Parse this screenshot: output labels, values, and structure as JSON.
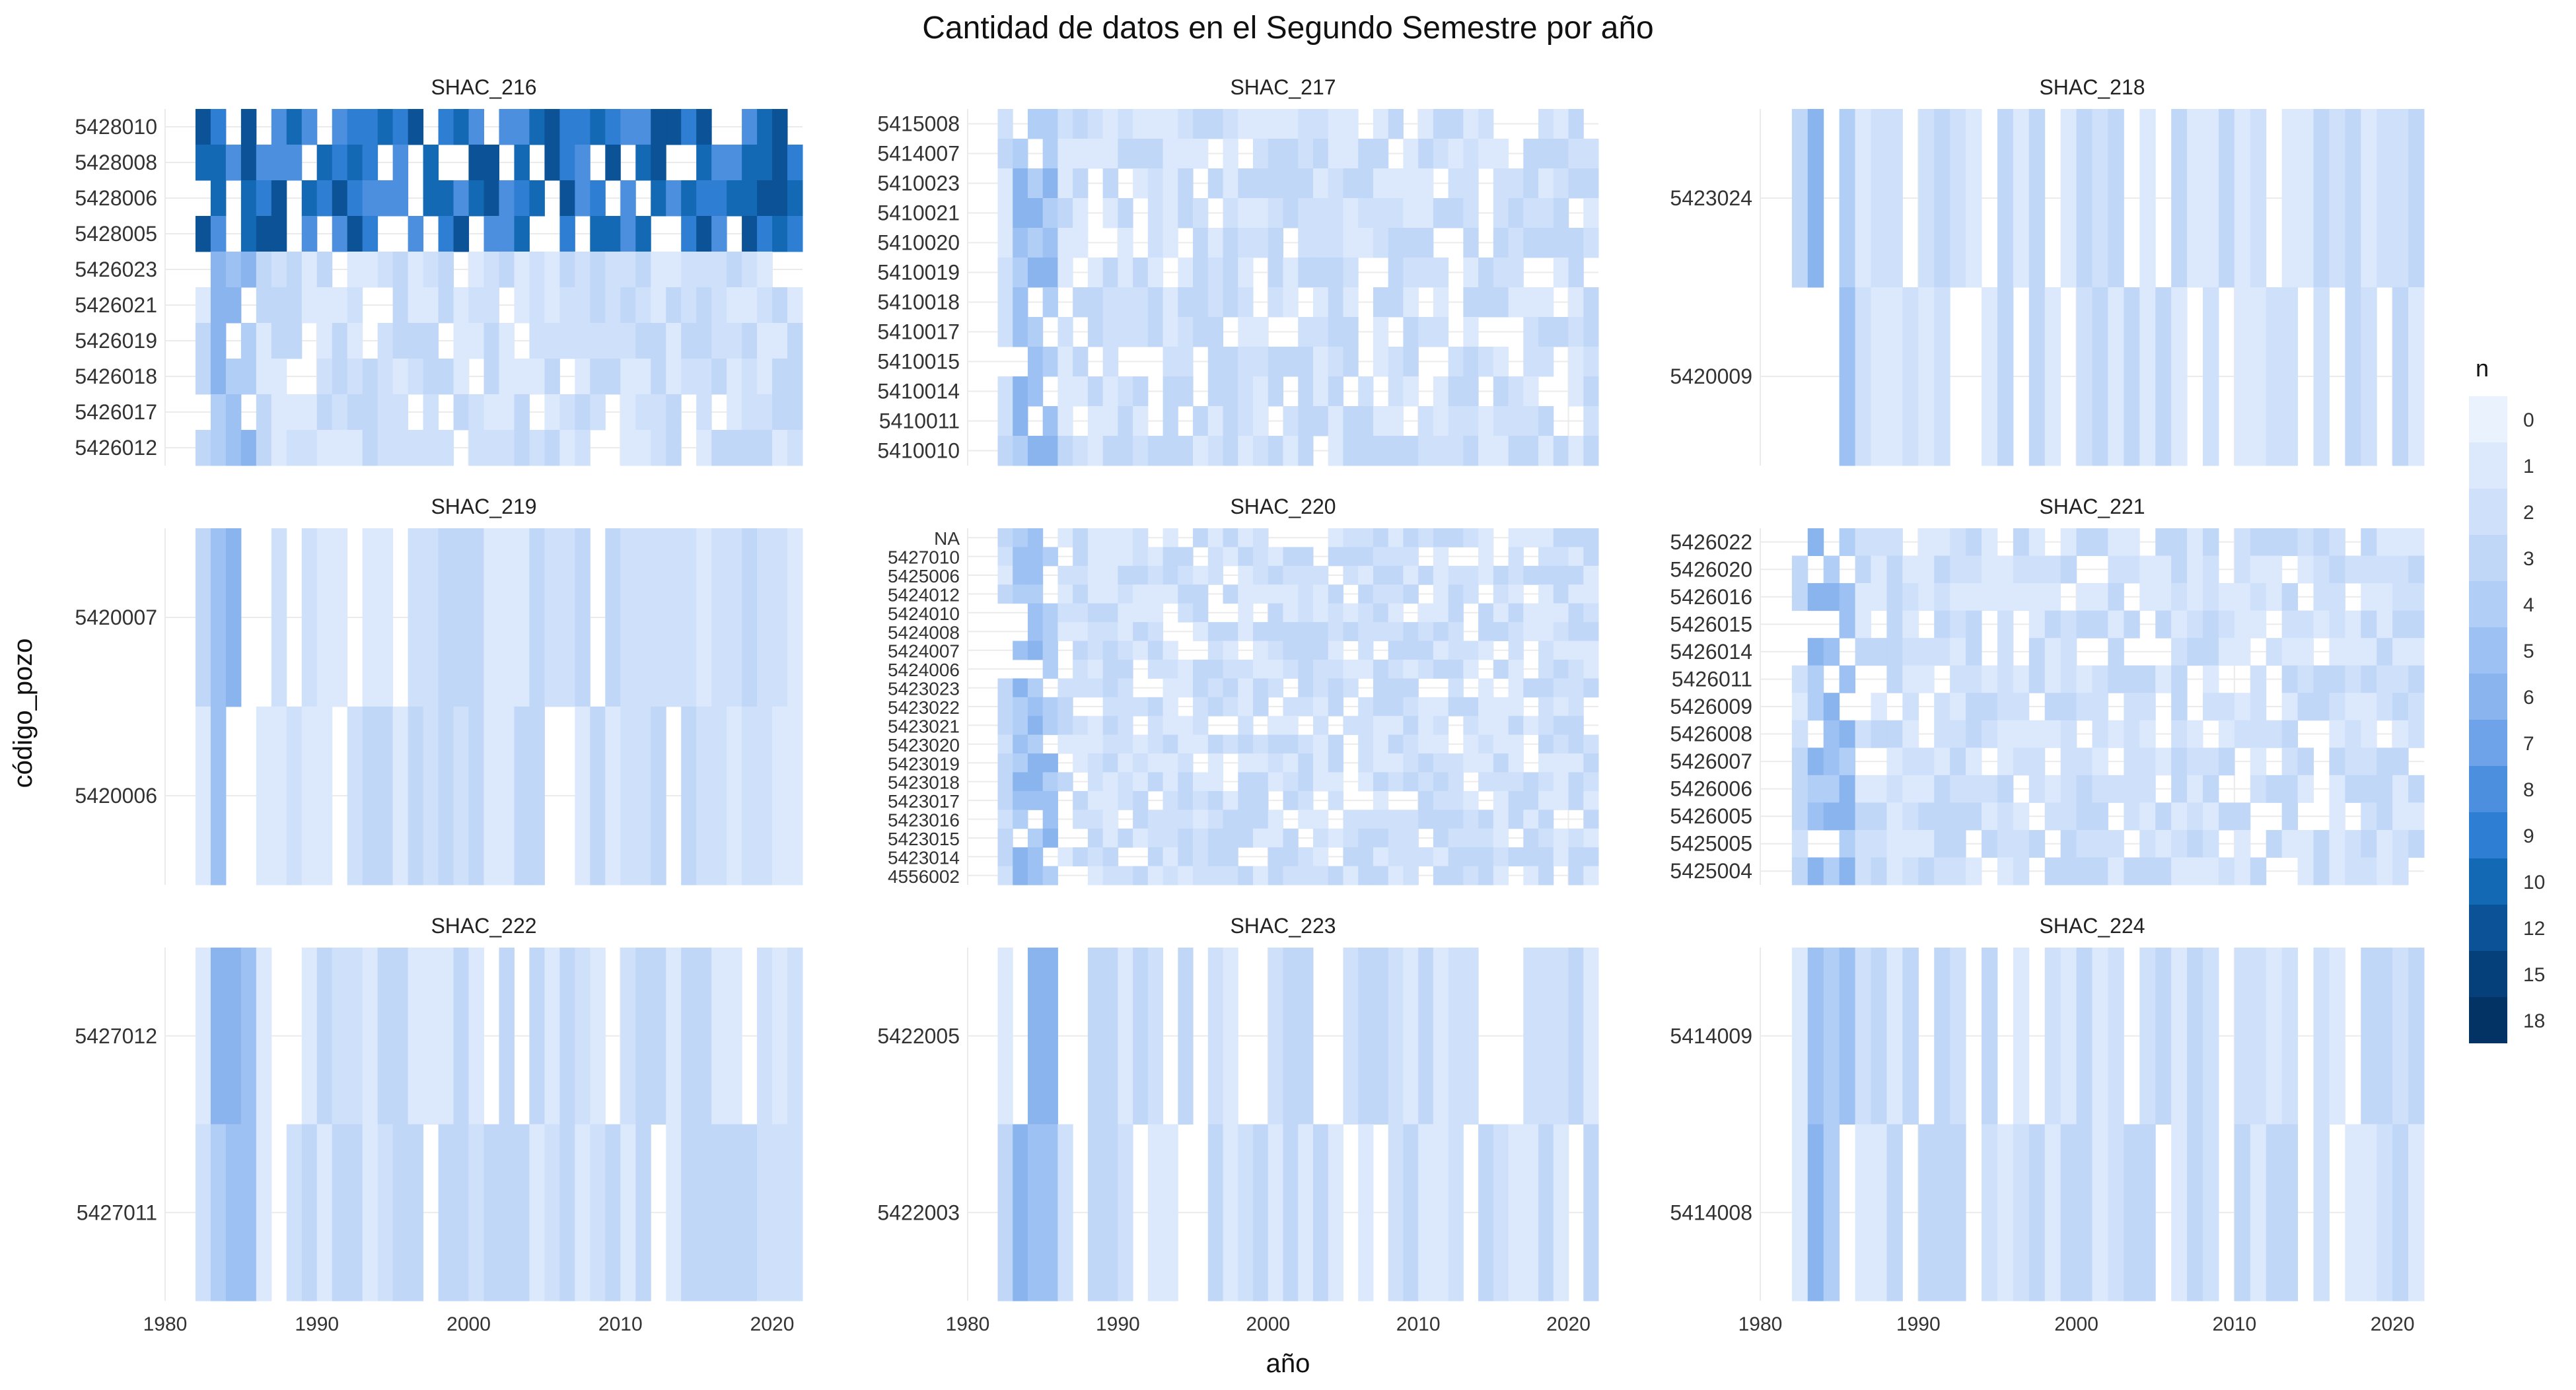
{
  "colors": {
    "scale": [
      "#EAF2FE",
      "#DCE9FC",
      "#CFE0FA",
      "#C0D7F8",
      "#B1CEF6",
      "#9DC1F3",
      "#8AB4EE",
      "#6FA3E9",
      "#4C8FDF",
      "#2E7FD4",
      "#1469B5",
      "#0B5297",
      "#06407A",
      "#033264"
    ]
  },
  "chart_data": {
    "type": "heatmap",
    "title": "Cantidad de datos en el Segundo Semestre por año",
    "xlabel": "año",
    "ylabel": "código_pozo",
    "x_ticks": [
      1980,
      1990,
      2000,
      2010,
      2020
    ],
    "xlim": [
      1980,
      2022
    ],
    "legend": {
      "title": "n",
      "position": "right",
      "labels": [
        "0",
        "1",
        "2",
        "3",
        "4",
        "5",
        "6",
        "7",
        "8",
        "9",
        "10",
        "12",
        "15",
        "18"
      ]
    },
    "panels": [
      {
        "name": "SHAC_216",
        "rows": [
          {
            "label": "5428010",
            "cells": "DDDJ00000000000000000000000000000000000000"
          },
          {
            "label": "5428008",
            "cells": "00000000000000000000000000000000000000000"
          },
          {
            "label": "5428006",
            "cells": "00000000000000000000000000000000000000000"
          },
          {
            "label": "5428005",
            "cells": "00000000000000000000000000000000000000000"
          },
          {
            "label": "5426023",
            "cells": "00000000000000000000000000000000000000000"
          },
          {
            "label": "5426021",
            "cells": "00000000000000000000000000000000000000000"
          },
          {
            "label": "5426019",
            "cells": "00000000000000000000000000000000000000000"
          },
          {
            "label": "5426018",
            "cells": "00000000000000000000000000000000000000000"
          },
          {
            "label": "5426017",
            "cells": "00000000000000000000000000000000000000000"
          },
          {
            "label": "5426012",
            "cells": "00000000000000000000000000000000000000000"
          }
        ]
      },
      {
        "name": "SHAC_217",
        "rows": [
          {
            "label": "5415008",
            "cells": "000000000000000000000000000000000000000000"
          },
          {
            "label": "5414007",
            "cells": "000000000000000000000000000000000000000000"
          },
          {
            "label": "5410023",
            "cells": "000000000000000000000000000000000000000000"
          },
          {
            "label": "5410021",
            "cells": "000000000000000000000000000000000000000000"
          },
          {
            "label": "5410020",
            "cells": "000000000000000000000000000000000000000000"
          },
          {
            "label": "5410019",
            "cells": "000000000000000000000000000000000000000000"
          },
          {
            "label": "5410018",
            "cells": "000000000000000000000000000000000000000000"
          },
          {
            "label": "5410017",
            "cells": "000000000000000000000000000000000000000000"
          },
          {
            "label": "5410015",
            "cells": "000000000000000000000000000000000000000000"
          },
          {
            "label": "5410014",
            "cells": "000000000000000000000000000000000000000000"
          },
          {
            "label": "5410011",
            "cells": "000000000000000000000000000000000000000000"
          },
          {
            "label": "5410010",
            "cells": "000000000000000000000000000000000000000000"
          }
        ]
      },
      {
        "name": "SHAC_218",
        "rows": [
          {
            "label": "5423024",
            "cells": "000000000000000000000000000000000000000000"
          },
          {
            "label": "5420009",
            "cells": "000000000000000000000000000000000000000000"
          }
        ]
      },
      {
        "name": "SHAC_219",
        "rows": [
          {
            "label": "5420007",
            "cells": "000000000000000000000000000000000000000000"
          },
          {
            "label": "5420006",
            "cells": "000000000000000000000000000000000000000000"
          }
        ]
      },
      {
        "name": "SHAC_220",
        "rows": [
          {
            "label": "NA",
            "cells": ""
          },
          {
            "label": "5427010",
            "cells": ""
          },
          {
            "label": "5425006",
            "cells": ""
          },
          {
            "label": "5424012",
            "cells": ""
          },
          {
            "label": "5424010",
            "cells": ""
          },
          {
            "label": "5424008",
            "cells": ""
          },
          {
            "label": "5424007",
            "cells": ""
          },
          {
            "label": "5424006",
            "cells": ""
          },
          {
            "label": "5423023",
            "cells": ""
          },
          {
            "label": "5423022",
            "cells": ""
          },
          {
            "label": "5423021",
            "cells": ""
          },
          {
            "label": "5423020",
            "cells": ""
          },
          {
            "label": "5423019",
            "cells": ""
          },
          {
            "label": "5423018",
            "cells": ""
          },
          {
            "label": "5423017",
            "cells": ""
          },
          {
            "label": "5423016",
            "cells": ""
          },
          {
            "label": "5423015",
            "cells": ""
          },
          {
            "label": "5423014",
            "cells": ""
          },
          {
            "label": "4556002",
            "cells": ""
          }
        ]
      },
      {
        "name": "SHAC_221",
        "rows": [
          {
            "label": "5426022",
            "cells": ""
          },
          {
            "label": "5426020",
            "cells": ""
          },
          {
            "label": "5426016",
            "cells": ""
          },
          {
            "label": "5426015",
            "cells": ""
          },
          {
            "label": "5426014",
            "cells": ""
          },
          {
            "label": "5426011",
            "cells": ""
          },
          {
            "label": "5426009",
            "cells": ""
          },
          {
            "label": "5426008",
            "cells": ""
          },
          {
            "label": "5426007",
            "cells": ""
          },
          {
            "label": "5426006",
            "cells": ""
          },
          {
            "label": "5426005",
            "cells": ""
          },
          {
            "label": "5425005",
            "cells": ""
          },
          {
            "label": "5425004",
            "cells": ""
          }
        ]
      },
      {
        "name": "SHAC_222",
        "rows": [
          {
            "label": "5427012",
            "cells": ""
          },
          {
            "label": "5427011",
            "cells": ""
          }
        ]
      },
      {
        "name": "SHAC_223",
        "rows": [
          {
            "label": "5422005",
            "cells": ""
          },
          {
            "label": "5422003",
            "cells": ""
          }
        ]
      },
      {
        "name": "SHAC_224",
        "rows": [
          {
            "label": "5414009",
            "cells": ""
          },
          {
            "label": "5414008",
            "cells": ""
          }
        ]
      }
    ]
  }
}
